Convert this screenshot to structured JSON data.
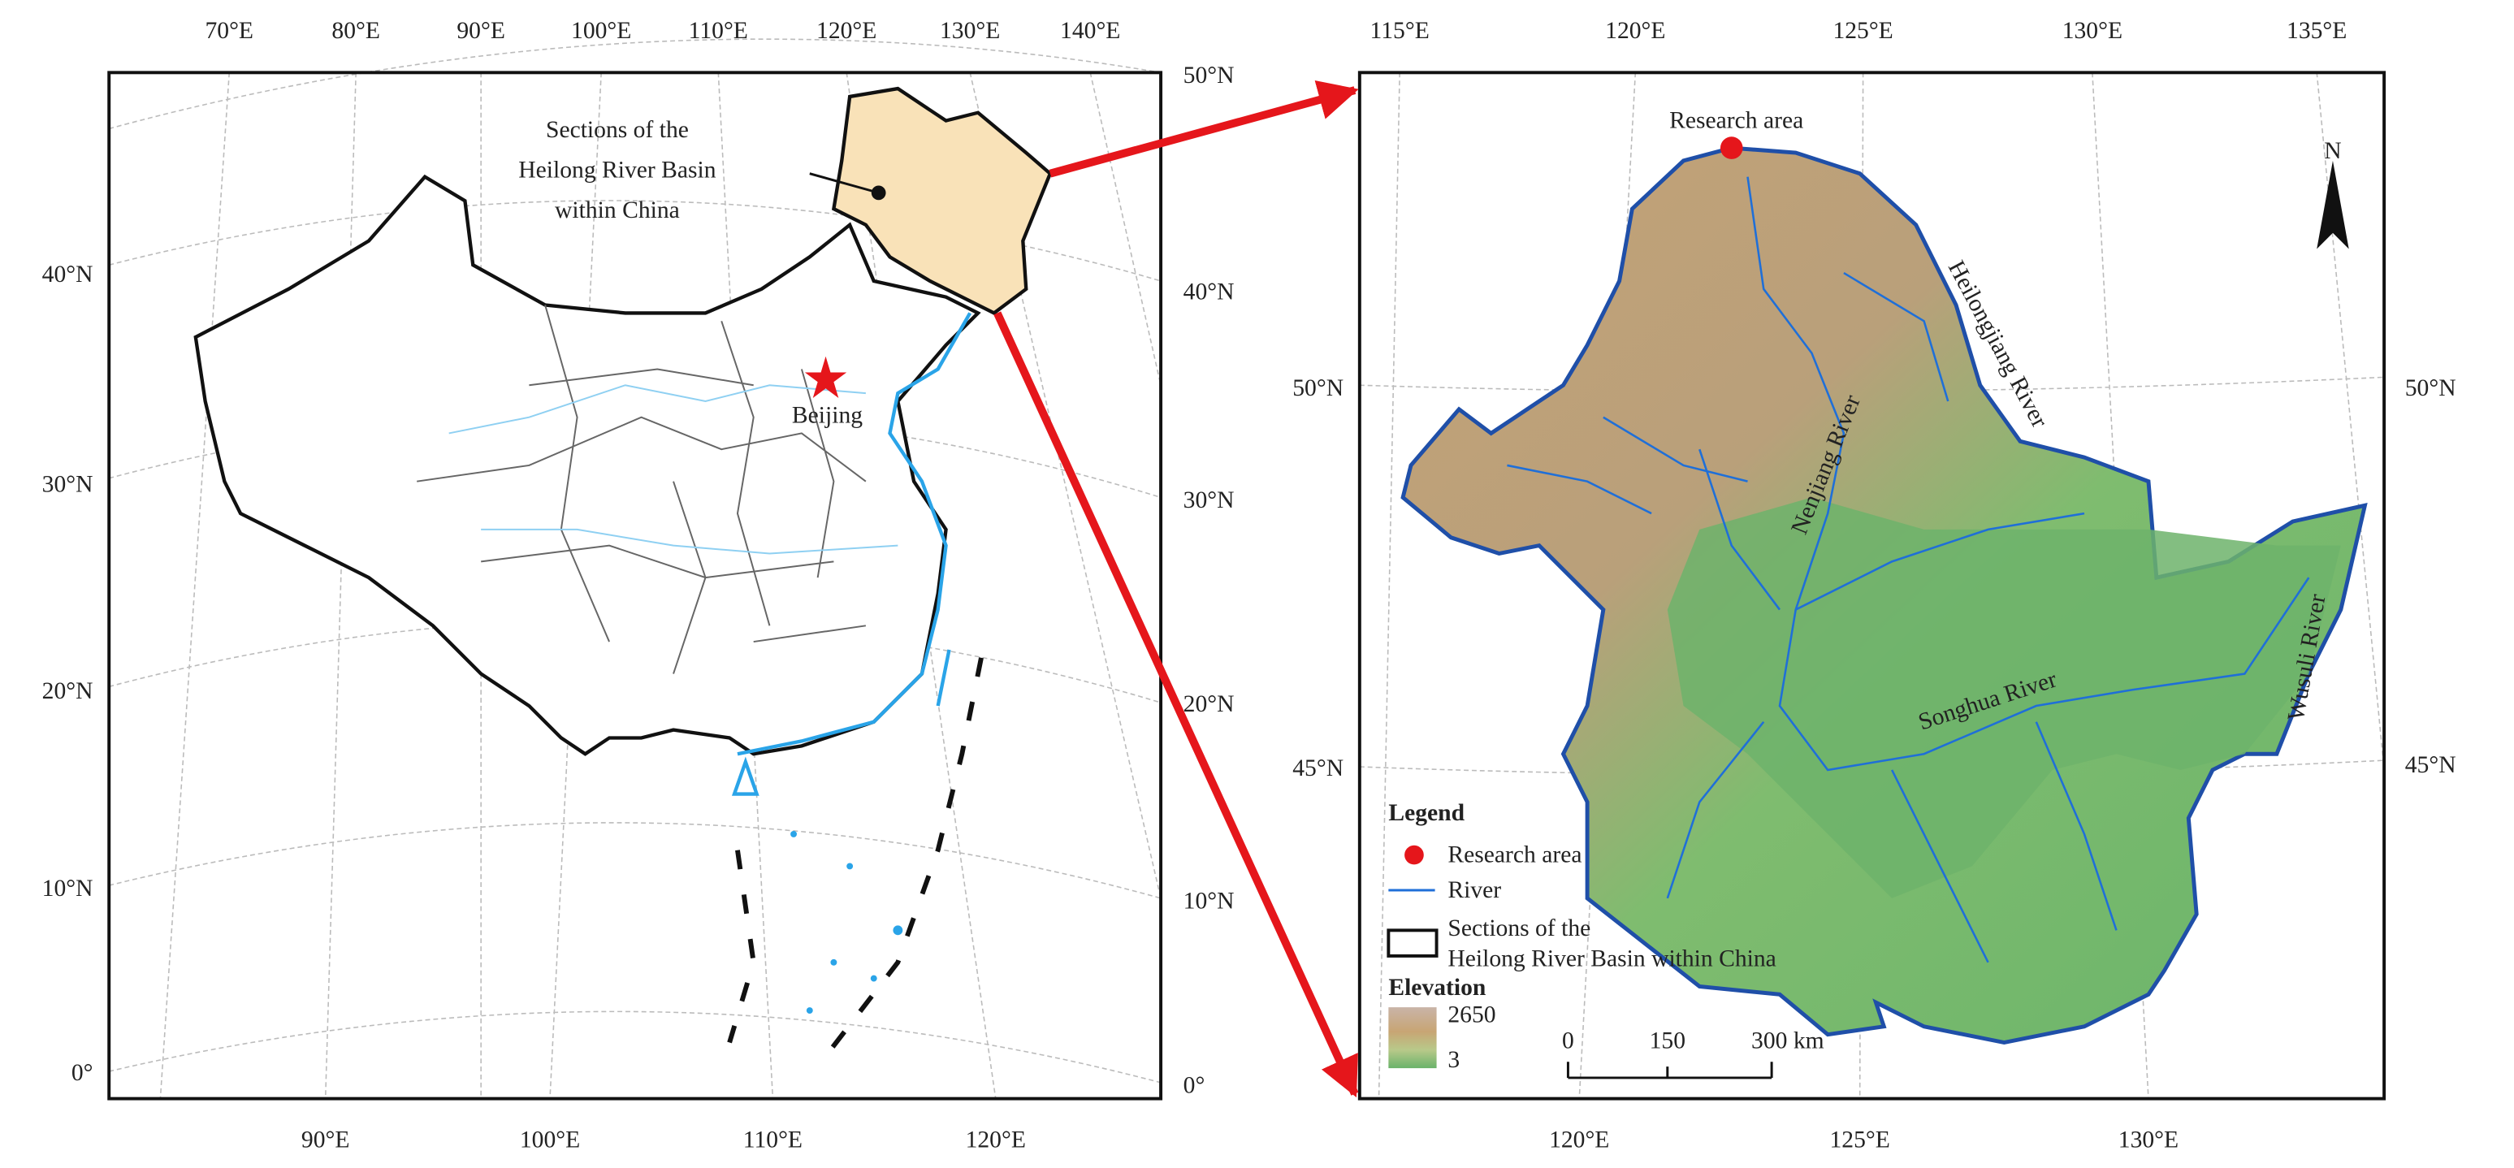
{
  "left_map": {
    "top_labels": [
      "70°E",
      "80°E",
      "90°E",
      "100°E",
      "110°E",
      "120°E",
      "130°E",
      "140°E"
    ],
    "bottom_labels": [
      "90°E",
      "100°E",
      "110°E",
      "120°E"
    ],
    "left_labels": [
      "40°N",
      "30°N",
      "20°N",
      "10°N",
      "0°"
    ],
    "right_labels": [
      "50°N",
      "40°N",
      "30°N",
      "20°N",
      "10°N",
      "0°"
    ],
    "annotation": [
      "Sections of the",
      "Heilong River Basin",
      "within China"
    ],
    "city": "Beijing"
  },
  "right_map": {
    "top_labels": [
      "115°E",
      "120°E",
      "125°E",
      "130°E",
      "135°E"
    ],
    "bottom_labels": [
      "120°E",
      "125°E",
      "130°E"
    ],
    "left_labels": [
      "50°N",
      "45°N"
    ],
    "right_labels": [
      "50°N",
      "45°N"
    ],
    "research_area": "Research area",
    "north": "N",
    "rivers": [
      "Heilongjiang River",
      "Nenjiang River",
      "Songhua River",
      "Wusuli River"
    ]
  },
  "legend": {
    "title": "Legend",
    "research_area": "Research area",
    "river": "River",
    "basin": [
      "Sections of the",
      "Heilong River Basin within China"
    ],
    "elevation_title": "Elevation",
    "elevation_high": "2650",
    "elevation_low": "3"
  },
  "scale_bar": [
    "0",
    "150",
    "300 km"
  ]
}
